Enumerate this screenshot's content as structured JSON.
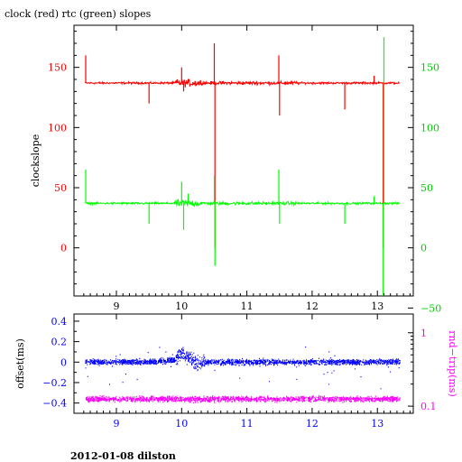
{
  "title": "clock (red) rtc (green) slopes",
  "footer": "2012-01-08 dilston",
  "colors": {
    "clock": "#ff0000",
    "rtc": "#00ff00",
    "offset": "#0000ff",
    "rndtrip": "#ff00ff",
    "frame": "#000000",
    "left_axis_top": "#ff0000",
    "right_axis_top": "#00cc00",
    "left_axis_bottom": "#0000ff",
    "right_axis_bottom": "#ff00ff"
  },
  "chart_data": [
    {
      "type": "line",
      "title": "clock (red) rtc (green) slopes",
      "xlabel": "",
      "ylabel": "clockslope",
      "xlim": [
        8.35,
        13.55
      ],
      "ylim": [
        -40,
        185
      ],
      "y2lim": [
        -40,
        185
      ],
      "xticks": [
        9,
        10,
        11,
        12,
        13
      ],
      "xtick_labels": [
        "9",
        "10",
        "11",
        "12",
        "13"
      ],
      "yticks": [
        0,
        50,
        100,
        150
      ],
      "ytick_labels": [
        "0",
        "50",
        "100",
        "150"
      ],
      "y2ticks": [
        -50,
        0,
        50,
        100,
        150
      ],
      "y2tick_labels": [
        "−50",
        "0",
        "50",
        "100",
        "150"
      ],
      "grid": false,
      "series": [
        {
          "name": "clock",
          "baseline": 137,
          "x": [
            8.52,
            8.53,
            8.55,
            9.0,
            9.49,
            9.5,
            9.9,
            10.0,
            10.03,
            10.1,
            10.5,
            10.51,
            11.0,
            11.49,
            11.5,
            12.0,
            12.49,
            12.5,
            12.8,
            12.95,
            13.08,
            13.09,
            13.1,
            13.34
          ],
          "y": [
            137,
            160,
            137,
            137,
            137,
            120,
            137,
            150,
            130,
            140,
            170,
            0,
            137,
            160,
            110,
            137,
            137,
            115,
            137,
            143,
            137,
            0,
            137,
            137
          ]
        },
        {
          "name": "rtc",
          "baseline": 37,
          "x": [
            8.52,
            8.53,
            8.55,
            9.0,
            9.49,
            9.5,
            9.9,
            10.0,
            10.03,
            10.1,
            10.5,
            10.51,
            11.0,
            11.49,
            11.5,
            12.0,
            12.49,
            12.5,
            12.8,
            12.95,
            13.08,
            13.09,
            13.1,
            13.34
          ],
          "y": [
            37,
            65,
            37,
            37,
            37,
            20,
            37,
            55,
            15,
            45,
            60,
            -15,
            37,
            65,
            20,
            37,
            37,
            20,
            37,
            43,
            37,
            -40,
            175,
            37
          ]
        }
      ]
    },
    {
      "type": "scatter",
      "title": "",
      "xlabel": "",
      "ylabel": "offset(ms)",
      "y2label": "rnd−trip(ms)",
      "xlim": [
        8.35,
        13.55
      ],
      "ylim": [
        -0.5,
        0.47
      ],
      "y2lim": [
        0.08,
        1.8
      ],
      "y2scale": "log",
      "xticks": [
        9,
        10,
        11,
        12,
        13
      ],
      "xtick_labels": [
        "9",
        "10",
        "11",
        "12",
        "13"
      ],
      "yticks": [
        -0.4,
        -0.2,
        0,
        0.2,
        0.4
      ],
      "ytick_labels": [
        "−0.4",
        "−0.2",
        "0",
        "0.2",
        "0.4"
      ],
      "y2ticks": [
        0.1,
        1
      ],
      "y2tick_labels": [
        "0.1",
        "1"
      ],
      "grid": false,
      "series": [
        {
          "name": "offset",
          "baseline": 0.0,
          "spread": 0.04,
          "x": [
            8.52,
            9.0,
            9.5,
            9.9,
            10.0,
            10.2,
            10.5,
            11.0,
            11.5,
            12.0,
            12.5,
            13.0,
            13.34
          ],
          "y": [
            0.0,
            0.0,
            0.0,
            0.02,
            0.1,
            0.0,
            0.0,
            0.0,
            0.0,
            0.0,
            0.0,
            0.0,
            0.0
          ]
        },
        {
          "name": "rndtrip",
          "baseline": 0.125,
          "spread": 0.015,
          "x": [
            8.52,
            9.0,
            9.5,
            10.0,
            10.5,
            11.0,
            11.5,
            12.0,
            12.5,
            13.0,
            13.34
          ],
          "y": [
            0.125,
            0.125,
            0.125,
            0.125,
            0.125,
            0.125,
            0.125,
            0.125,
            0.125,
            0.125,
            0.125
          ]
        }
      ]
    }
  ]
}
